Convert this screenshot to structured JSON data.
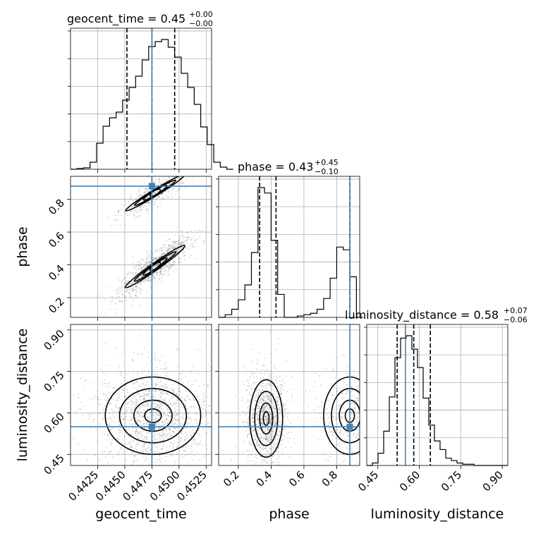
{
  "chart_data": {
    "type": "corner",
    "parameters": [
      "geocent_time",
      "phase",
      "luminosity_distance"
    ],
    "truths": {
      "geocent_time": 0.4475,
      "phase": 0.88,
      "luminosity_distance": 0.55
    },
    "truth_color": "#4682b4",
    "titles": [
      {
        "name": "geocent_time",
        "median": "0.45",
        "plus": "+0.00",
        "minus": "−0.00"
      },
      {
        "name": "phase",
        "median": "0.43",
        "plus": "+0.45",
        "minus": "−0.10"
      },
      {
        "name": "luminosity_distance",
        "median": "0.58",
        "plus": "+0.07",
        "minus": "−0.06"
      }
    ],
    "ranges": {
      "geocent_time": [
        0.44,
        0.453
      ],
      "phase": [
        0.08,
        0.94
      ],
      "luminosity_distance": [
        0.41,
        0.92
      ]
    },
    "ticks": {
      "geocent_time": [
        "0.4425",
        "0.4450",
        "0.4475",
        "0.4500",
        "0.4525"
      ],
      "phase": [
        "0.2",
        "0.4",
        "0.6",
        "0.8"
      ],
      "luminosity_distance": [
        "0.45",
        "0.60",
        "0.75",
        "0.90"
      ]
    },
    "marginals": {
      "geocent_time": {
        "edges_start": 0.44,
        "bin_width": 0.0006,
        "values": [
          0,
          1,
          2,
          10,
          37,
          61,
          73,
          81,
          98,
          116,
          132,
          155,
          174,
          181,
          184,
          173,
          159,
          136,
          116,
          92,
          60,
          35,
          10,
          3,
          0
        ],
        "quantiles": [
          0.4452,
          0.4475,
          0.4496
        ]
      },
      "phase": {
        "edges_start": 0.08,
        "bin_width": 0.04,
        "values": [
          0,
          2,
          6,
          13,
          24,
          48,
          96,
          92,
          57,
          17,
          0,
          0,
          1,
          2,
          3,
          6,
          14,
          29,
          52,
          50,
          30,
          0
        ],
        "quantiles": [
          0.33,
          0.43,
          0.88
        ]
      },
      "luminosity_distance": {
        "edges_start": 0.41,
        "bin_width": 0.0204,
        "values": [
          0,
          2,
          10,
          28,
          56,
          88,
          104,
          106,
          95,
          80,
          55,
          33,
          20,
          13,
          6,
          4,
          2,
          1,
          1,
          0,
          0,
          0,
          0,
          0,
          0
        ],
        "quantiles": [
          0.52,
          0.58,
          0.64
        ]
      }
    },
    "grid": true,
    "show_quantiles": [
      0.16,
      0.5,
      0.84
    ]
  }
}
